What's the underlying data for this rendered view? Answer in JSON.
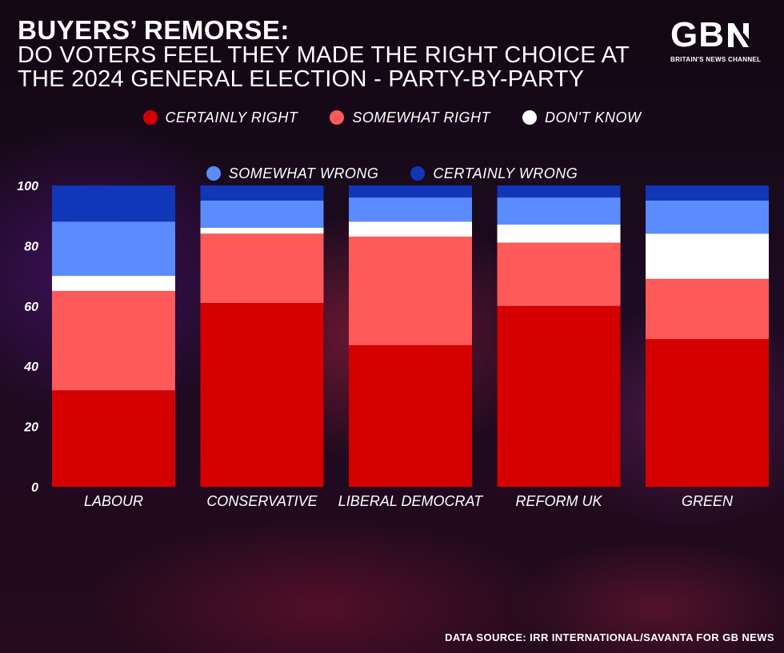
{
  "header": {
    "title": "BUYERS’ REMORSE:",
    "subtitle": "DO VOTERS FEEL THEY MADE THE RIGHT CHOICE AT THE 2024 GENERAL ELECTION - PARTY-BY-PARTY"
  },
  "logo": {
    "text": "GB",
    "n_glyph": "N",
    "tagline": "BRITAIN'S NEWS CHANNEL"
  },
  "source": "DATA SOURCE: IRR INTERNATIONAL/SAVANTA FOR GB NEWS",
  "chart_data": {
    "type": "bar",
    "stacked": true,
    "categories": [
      "LABOUR",
      "CONSERVATIVE",
      "LIBERAL DEMOCRAT",
      "REFORM UK",
      "GREEN"
    ],
    "series": [
      {
        "name": "CERTAINLY RIGHT",
        "color": "#d40000",
        "values": [
          32,
          61,
          47,
          60,
          49
        ]
      },
      {
        "name": "SOMEWHAT RIGHT",
        "color": "#ff5a5a",
        "values": [
          33,
          23,
          36,
          21,
          20
        ]
      },
      {
        "name": "DON'T KNOW",
        "color": "#ffffff",
        "values": [
          5,
          2,
          5,
          6,
          15
        ]
      },
      {
        "name": "SOMEWHAT WRONG",
        "color": "#5b8cff",
        "values": [
          18,
          9,
          8,
          9,
          11
        ]
      },
      {
        "name": "CERTAINLY WRONG",
        "color": "#1136b8",
        "values": [
          12,
          5,
          4,
          4,
          5
        ]
      }
    ],
    "ylim": [
      0,
      100
    ],
    "yticks": [
      0,
      20,
      40,
      60,
      80,
      100
    ],
    "grid": false,
    "legend_position": "top"
  }
}
